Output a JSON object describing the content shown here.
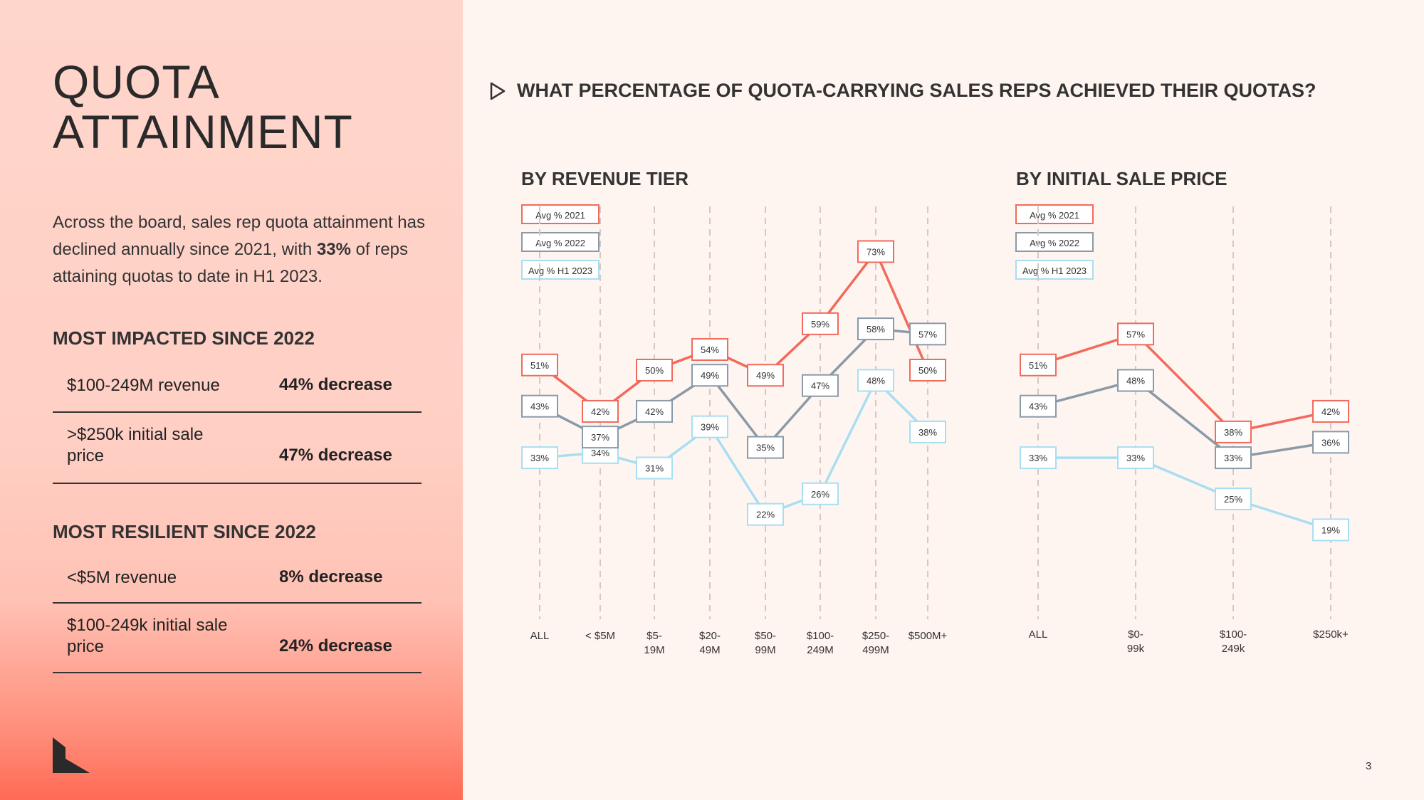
{
  "title_line1": "QUOTA",
  "title_line2": "ATTAINMENT",
  "intro": {
    "before": "Across the board, sales rep quota attainment has declined annually since 2021, with ",
    "bold": "33%",
    "after": " of reps attaining quotas to date in H1 2023."
  },
  "impacted": {
    "heading": "MOST IMPACTED SINCE 2022",
    "rows": [
      {
        "label": "$100-249M revenue",
        "value": "44% decrease"
      },
      {
        "label": ">$250k initial sale price",
        "value": "47% decrease"
      }
    ]
  },
  "resilient": {
    "heading": "MOST RESILIENT SINCE 2022",
    "rows": [
      {
        "label": "<$5M revenue",
        "value": "8% decrease"
      },
      {
        "label": "$100-249k initial sale price",
        "value": "24% decrease"
      }
    ]
  },
  "question": "WHAT PERCENTAGE OF QUOTA-CARRYING SALES REPS ACHIEVED THEIR QUOTAS?",
  "page_number": "3",
  "colors": {
    "s2021": "#f26a5b",
    "s2022": "#8a9aa8",
    "sH1": "#a9def2"
  },
  "chart_data": [
    {
      "type": "line",
      "title": "BY REVENUE TIER",
      "categories": [
        "ALL",
        "< $5M",
        "$5-\n19M",
        "$20-\n49M",
        "$50-\n99M",
        "$100-\n249M",
        "$250-\n499M",
        "$500M+"
      ],
      "series": [
        {
          "name": "Avg % 2021",
          "values": [
            51,
            42,
            50,
            54,
            49,
            59,
            73,
            50
          ]
        },
        {
          "name": "Avg % 2022",
          "values": [
            43,
            37,
            42,
            49,
            35,
            47,
            58,
            57
          ]
        },
        {
          "name": "Avg % H1 2023",
          "values": [
            33,
            34,
            31,
            39,
            22,
            26,
            48,
            38
          ]
        }
      ],
      "ylim": [
        10,
        80
      ],
      "grid": "vertical dashed",
      "legend": "top-left"
    },
    {
      "type": "line",
      "title": "BY INITIAL SALE PRICE",
      "categories": [
        "ALL",
        "$0-\n99k",
        "$100-\n249k",
        "$250k+"
      ],
      "series": [
        {
          "name": "Avg % 2021",
          "values": [
            51,
            57,
            38,
            42
          ]
        },
        {
          "name": "Avg % 2022",
          "values": [
            43,
            48,
            33,
            36
          ]
        },
        {
          "name": "Avg % H1 2023",
          "values": [
            33,
            33,
            25,
            19
          ]
        }
      ],
      "ylim": [
        10,
        80
      ],
      "grid": "vertical dashed",
      "legend": "top-left"
    }
  ]
}
